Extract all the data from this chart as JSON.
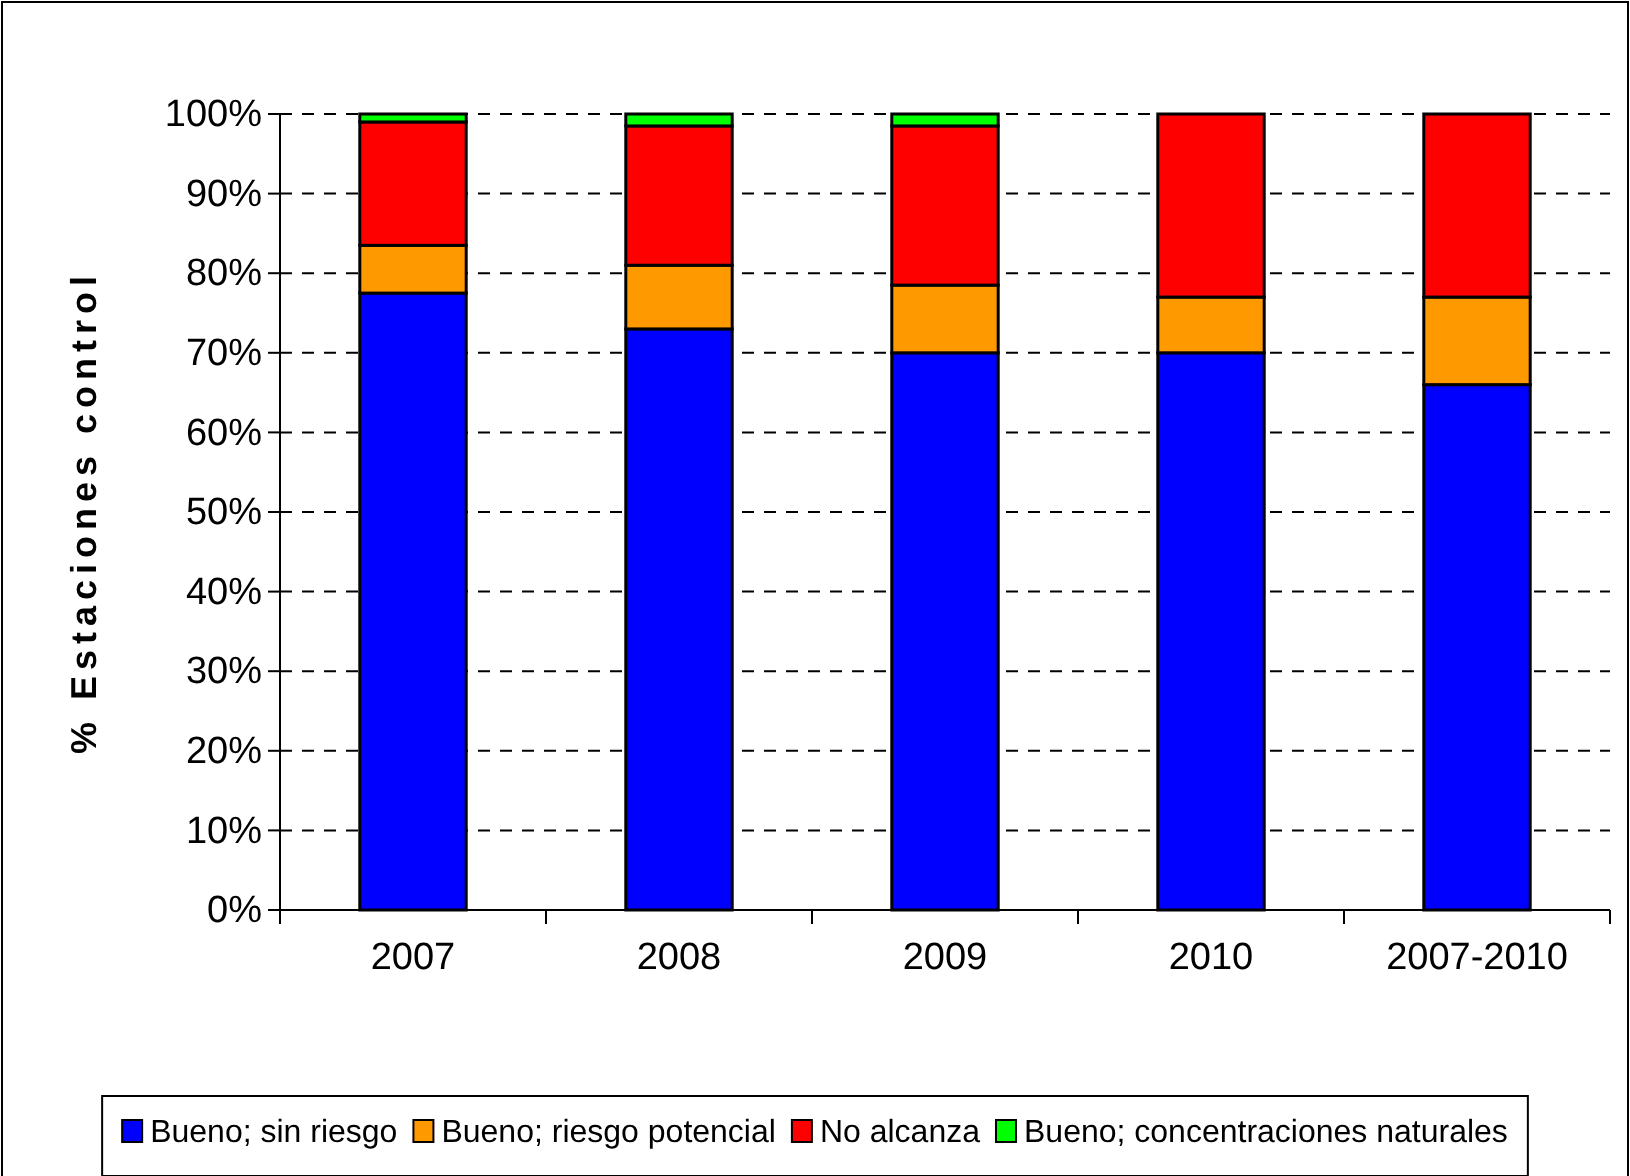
{
  "chart_data": {
    "type": "bar",
    "stacked": true,
    "ylabel": "% Estaciones control",
    "categories": [
      "2007",
      "2008",
      "2009",
      "2010",
      "2007-2010"
    ],
    "series": [
      {
        "name": "Bueno; sin riesgo",
        "color": "#0000ff",
        "values": [
          77.5,
          73,
          70,
          70,
          66
        ]
      },
      {
        "name": "Bueno; riesgo potencial",
        "color": "#ff9900",
        "values": [
          6,
          8,
          8.5,
          7,
          11
        ]
      },
      {
        "name": "No alcanza",
        "color": "#ff0000",
        "values": [
          15.5,
          17.5,
          20,
          23,
          23
        ]
      },
      {
        "name": "Bueno; concentraciones naturales",
        "color": "#00ff00",
        "values": [
          1,
          1.5,
          1.5,
          0,
          0
        ]
      }
    ],
    "ylim": [
      0,
      100
    ],
    "yticks": [
      {
        "value": 0,
        "label": "0%"
      },
      {
        "value": 10,
        "label": "10%"
      },
      {
        "value": 20,
        "label": "20%"
      },
      {
        "value": 30,
        "label": "30%"
      },
      {
        "value": 40,
        "label": "40%"
      },
      {
        "value": 50,
        "label": "50%"
      },
      {
        "value": 60,
        "label": "60%"
      },
      {
        "value": 70,
        "label": "70%"
      },
      {
        "value": 80,
        "label": "80%"
      },
      {
        "value": 90,
        "label": "90%"
      },
      {
        "value": 100,
        "label": "100%"
      }
    ],
    "grid": "y",
    "legend": "bottom"
  }
}
